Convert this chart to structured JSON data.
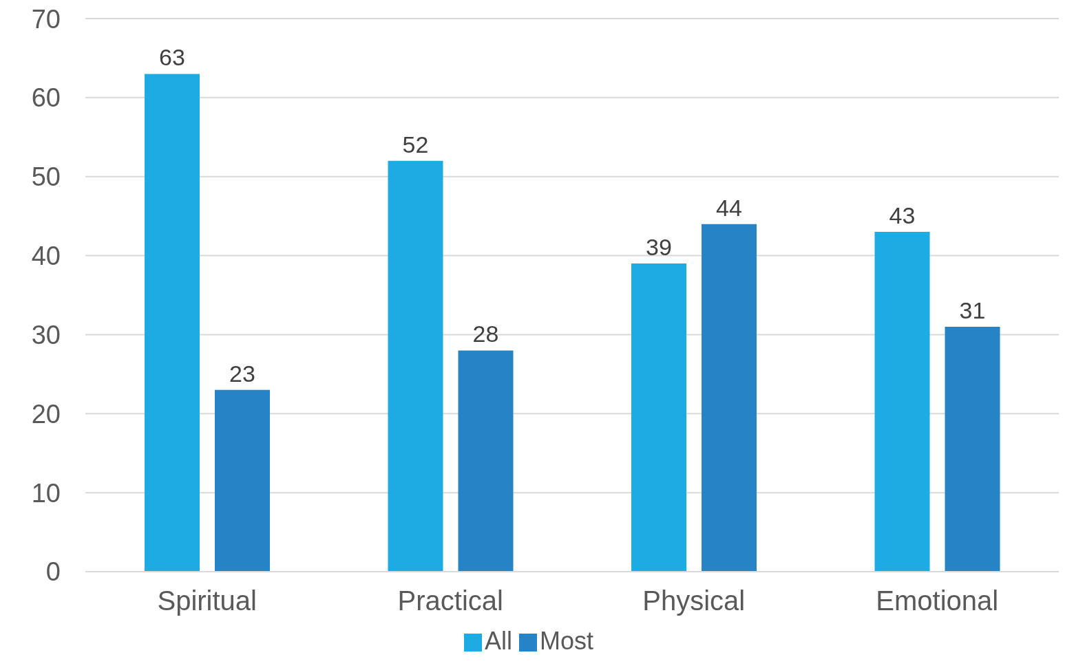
{
  "chart_data": {
    "type": "bar",
    "categories": [
      "Spiritual",
      "Practical",
      "Physical",
      "Emotional"
    ],
    "series": [
      {
        "name": "All",
        "color": "#1eaae2",
        "values": [
          63,
          52,
          39,
          43
        ]
      },
      {
        "name": "Most",
        "color": "#2683c6",
        "values": [
          23,
          28,
          44,
          31
        ]
      }
    ],
    "ylim": [
      0,
      70
    ],
    "yticks": [
      0,
      10,
      20,
      30,
      40,
      50,
      60,
      70
    ],
    "grid": "y",
    "legend": "bottom",
    "data_labels": true
  }
}
